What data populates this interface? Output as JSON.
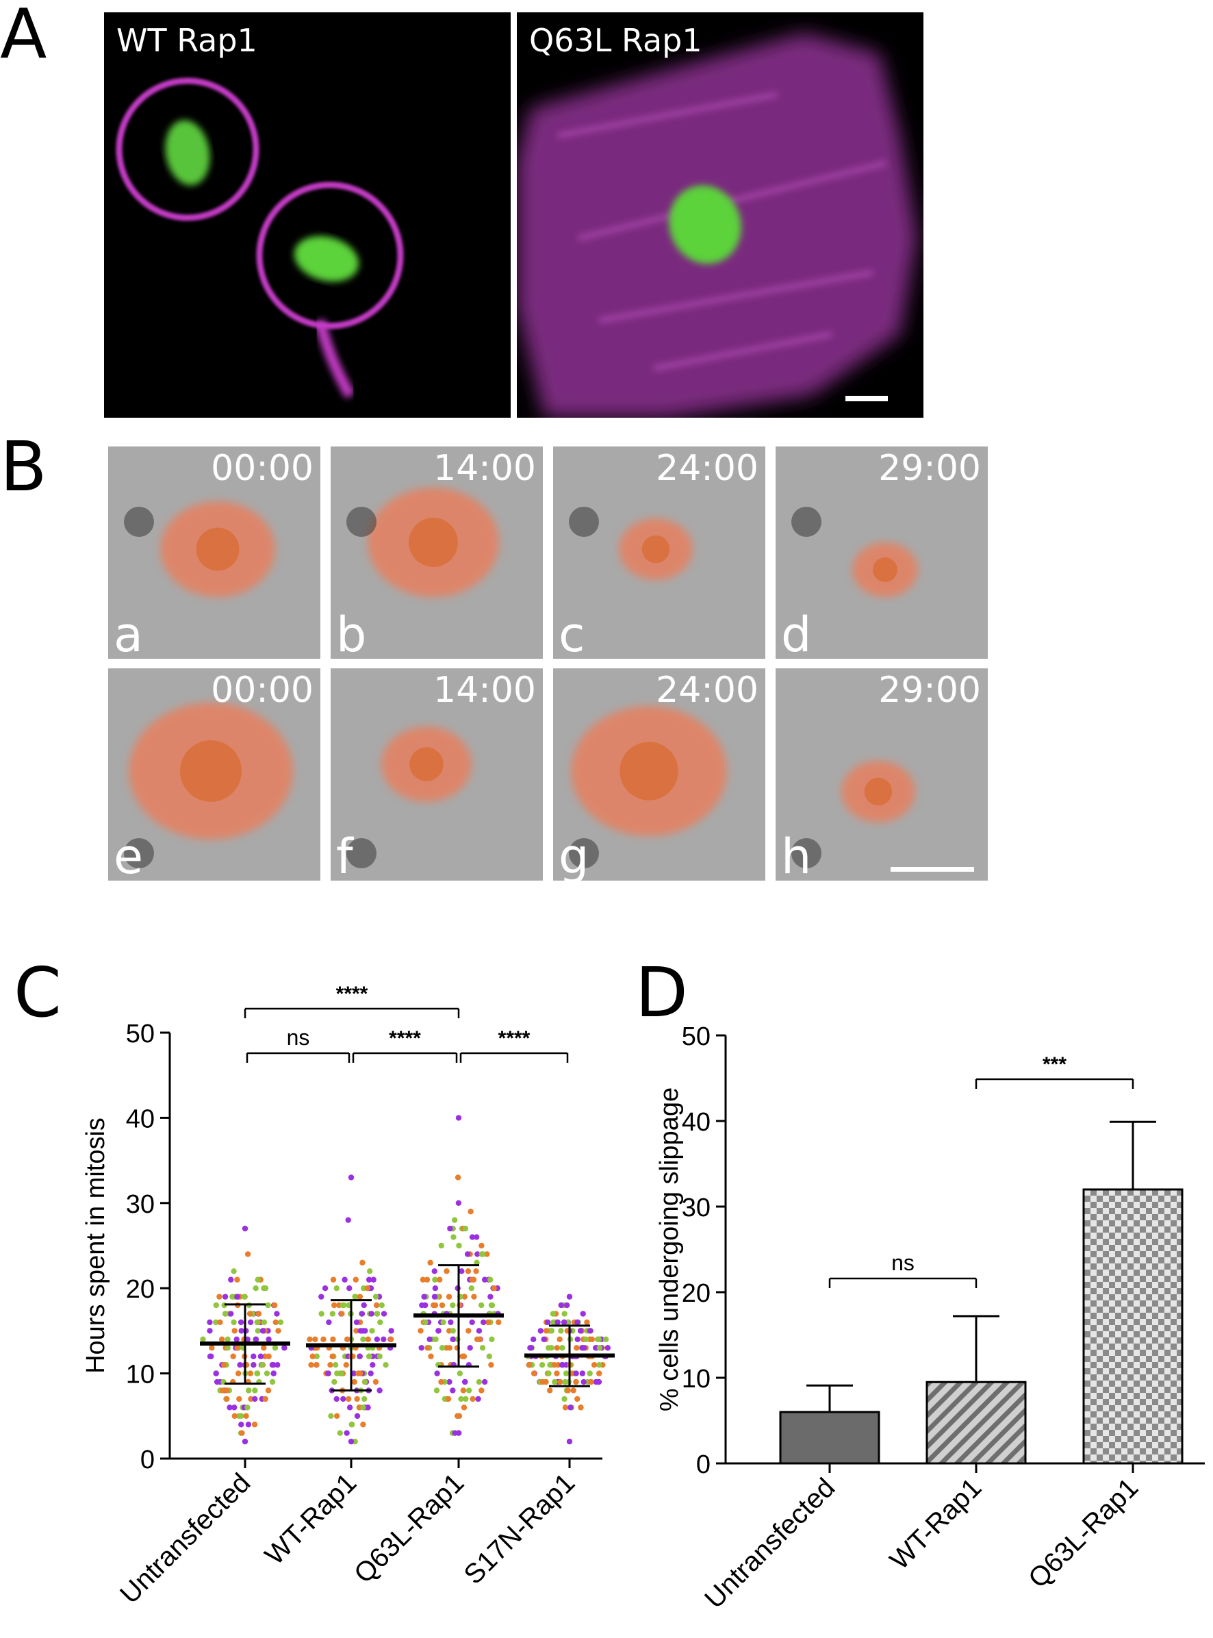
{
  "panels": {
    "a": "A",
    "b": "B",
    "c": "C",
    "d": "D"
  },
  "panel_a": {
    "left_label": "WT Rap1",
    "right_label": "Q63L Rap1",
    "colors": {
      "membrane": "#c23bc4",
      "chromatin": "#5bd23a"
    }
  },
  "panel_b": {
    "times": [
      "00:00",
      "14:00",
      "24:00",
      "29:00"
    ],
    "row1": [
      "a",
      "b",
      "c",
      "d"
    ],
    "row2": [
      "e",
      "f",
      "g",
      "h"
    ],
    "colors": {
      "cell": "#ef7a55",
      "background": "#a9a9a9"
    }
  },
  "chart_data": [
    {
      "panel": "C",
      "type": "scatter",
      "ylabel": "Hours spent in mitosis",
      "xlabel": "",
      "ylim": [
        0,
        50
      ],
      "yticks": [
        0,
        10,
        20,
        30,
        40,
        50
      ],
      "categories": [
        "Untransfected",
        "WT-Rap1",
        "Q63L-Rap1",
        "S17N-Rap1"
      ],
      "mean": [
        13.5,
        13.3,
        16.8,
        12.1
      ],
      "sd_upper": [
        18.1,
        18.6,
        22.7,
        15.6
      ],
      "sd_lower": [
        8.8,
        8.0,
        10.8,
        8.5
      ],
      "point_range": [
        [
          2,
          27
        ],
        [
          2,
          33
        ],
        [
          3,
          40
        ],
        [
          2,
          19
        ]
      ],
      "point_colors": [
        "#e87d2a",
        "#8fc63e",
        "#9b30e0"
      ],
      "significance": [
        {
          "from": 0,
          "to": 1,
          "label": "ns"
        },
        {
          "from": 1,
          "to": 2,
          "label": "****"
        },
        {
          "from": 2,
          "to": 3,
          "label": "****"
        },
        {
          "from": 0,
          "to": 2,
          "label": "****"
        }
      ]
    },
    {
      "panel": "D",
      "type": "bar",
      "ylabel": "% cells undergoing slippage",
      "xlabel": "",
      "ylim": [
        0,
        50
      ],
      "yticks": [
        0,
        10,
        20,
        30,
        40,
        50
      ],
      "categories": [
        "Untransfected",
        "WT-Rap1",
        "Q63L-Rap1"
      ],
      "values": [
        6.0,
        9.5,
        32.0
      ],
      "error_upper": [
        9.1,
        17.2,
        39.9
      ],
      "fills": [
        "solid",
        "hatched",
        "checkered"
      ],
      "significance": [
        {
          "from": 0,
          "to": 1,
          "label": "ns"
        },
        {
          "from": 1,
          "to": 2,
          "label": "***"
        }
      ]
    }
  ]
}
